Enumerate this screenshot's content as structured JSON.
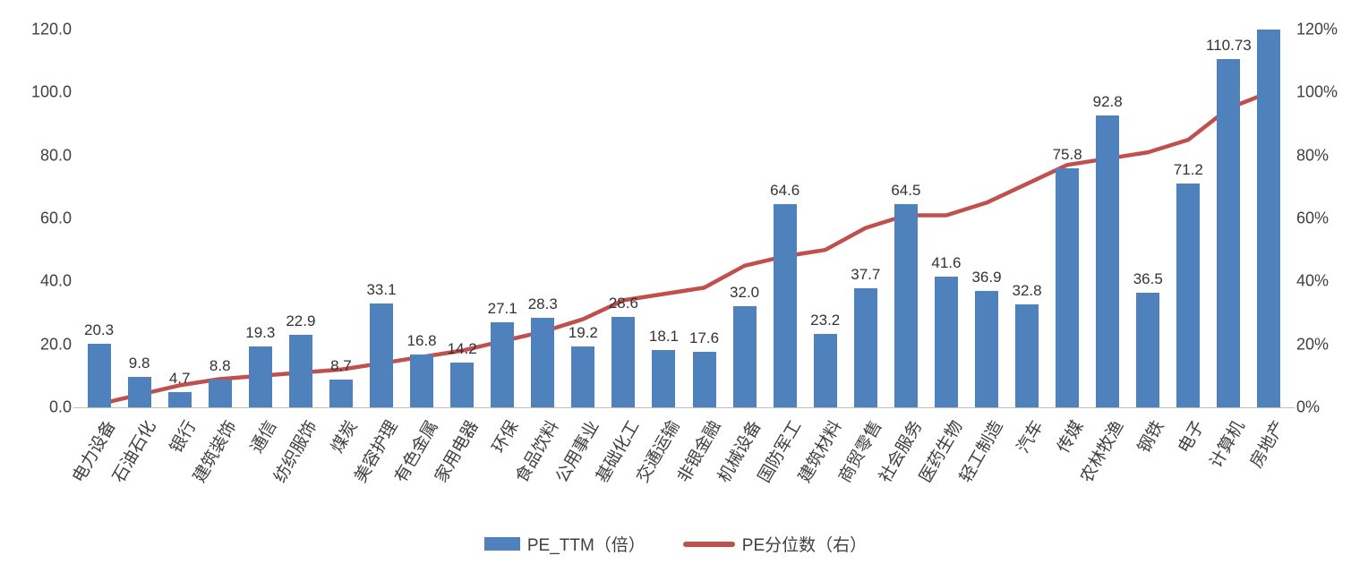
{
  "chart_data": {
    "type": "bar",
    "title": "",
    "grid": false,
    "legend_position": "bottom",
    "categories": [
      "电力设备",
      "石油石化",
      "银行",
      "建筑装饰",
      "通信",
      "纺织服饰",
      "煤炭",
      "美容护理",
      "有色金属",
      "家用电器",
      "环保",
      "食品饮料",
      "公用事业",
      "基础化工",
      "交通运输",
      "非银金融",
      "机械设备",
      "国防军工",
      "建筑材料",
      "商贸零售",
      "社会服务",
      "医药生物",
      "轻工制造",
      "汽车",
      "传媒",
      "农林牧渔",
      "钢铁",
      "电子",
      "计算机",
      "房地产"
    ],
    "series": [
      {
        "name": "PE_TTM（倍）",
        "type": "bar",
        "axis": "left",
        "color": "#4F81BD",
        "values": [
          20.3,
          9.8,
          4.7,
          8.8,
          19.3,
          22.9,
          8.7,
          33.1,
          16.8,
          14.2,
          27.1,
          28.3,
          19.2,
          28.6,
          18.1,
          17.6,
          32.0,
          64.6,
          23.2,
          37.7,
          64.5,
          41.6,
          36.9,
          32.8,
          75.8,
          92.8,
          36.5,
          71.2,
          110.73,
          120.0
        ],
        "labels": [
          "20.3",
          "9.8",
          "4.7",
          "8.8",
          "19.3",
          "22.9",
          "8.7",
          "33.1",
          "16.8",
          "14.2",
          "27.1",
          "28.3",
          "19.2",
          "28.6",
          "18.1",
          "17.6",
          "32.0",
          "64.6",
          "23.2",
          "37.7",
          "64.5",
          "41.6",
          "36.9",
          "32.8",
          "75.8",
          "92.8",
          "36.5",
          "71.2",
          "110.73",
          ""
        ]
      },
      {
        "name": "PE分位数（右）",
        "type": "line",
        "axis": "right",
        "color": "#C0504D",
        "values": [
          1,
          4,
          7,
          9,
          10,
          11,
          12,
          14,
          16,
          18,
          21,
          24,
          28,
          34,
          36,
          38,
          45,
          48,
          50,
          57,
          61,
          61,
          65,
          71,
          77,
          79,
          81,
          85,
          95,
          100
        ]
      }
    ],
    "left_axis": {
      "ticks": [
        "0.0",
        "20.0",
        "40.0",
        "60.0",
        "80.0",
        "100.0",
        "120.0"
      ],
      "min": 0,
      "max": 120
    },
    "right_axis": {
      "ticks": [
        "0%",
        "20%",
        "40%",
        "60%",
        "80%",
        "100%",
        "120%"
      ],
      "min": 0,
      "max": 120
    }
  }
}
